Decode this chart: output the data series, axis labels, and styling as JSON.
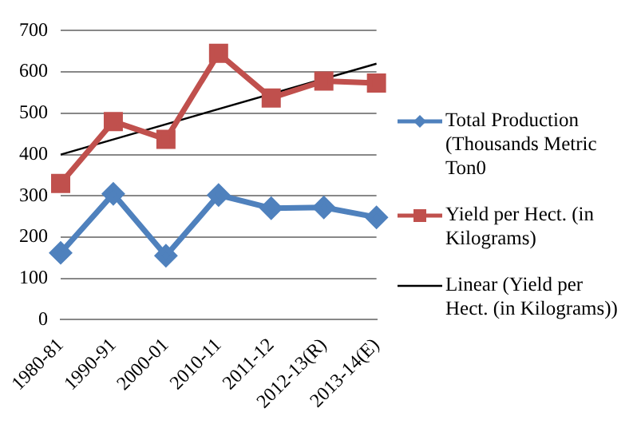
{
  "chart_data": {
    "type": "line",
    "categories": [
      "1980-81",
      "1990-91",
      "2000-01",
      "2010-11",
      "2011-12",
      "2012-13(R)",
      "2013-14(E)"
    ],
    "series": [
      {
        "name": "Total Production (Thousands Metric Ton0",
        "color": "#4f81bd",
        "marker": "diamond",
        "values": [
          162,
          305,
          155,
          302,
          270,
          272,
          248
        ]
      },
      {
        "name": "Yield per Hect. (in Kilograms)",
        "color": "#c0504d",
        "marker": "square",
        "values": [
          330,
          480,
          437,
          645,
          537,
          578,
          573
        ]
      },
      {
        "name": "Linear (Yield per Hect. (in Kilograms))",
        "color": "#000000",
        "marker": "none",
        "values": [
          400,
          null,
          null,
          null,
          null,
          null,
          620
        ]
      }
    ],
    "ylim": [
      0,
      700
    ],
    "yticks": [
      0,
      100,
      200,
      300,
      400,
      500,
      600,
      700
    ],
    "grid": "y",
    "legend": "right"
  }
}
